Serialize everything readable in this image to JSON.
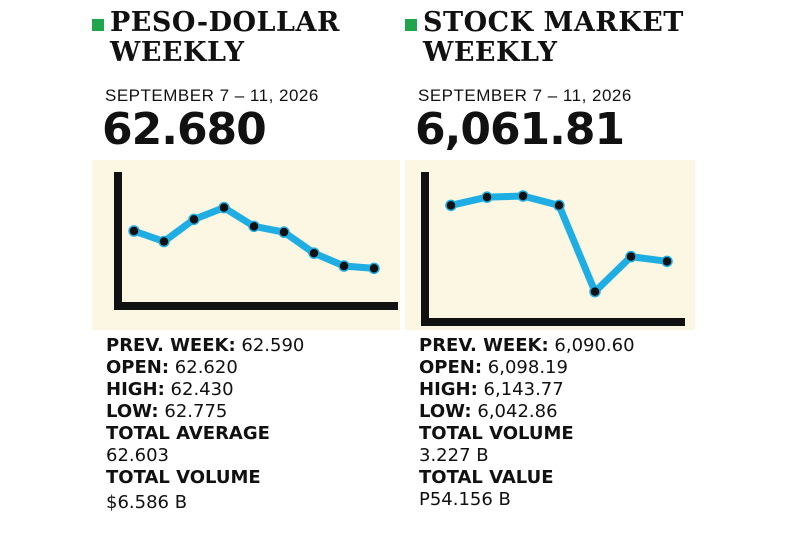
{
  "colors": {
    "bullet": "#1fa54b",
    "line": "#1eaee4",
    "marker": "#111111",
    "chart_bg": "#fbf7e2",
    "axis": "#111111"
  },
  "peso": {
    "title": "PESO-DOLLAR\nWEEKLY",
    "date": "SEPTEMBER 7 – 11, 2026",
    "value": "62.680",
    "stats": {
      "prev_label": "PREV. WEEK:",
      "prev_value": "62.590",
      "open_label": "OPEN:",
      "open_value": "62.620",
      "high_label": "HIGH:",
      "high_value": "62.430",
      "low_label": "LOW:",
      "low_value": "62.775",
      "avg_label": "TOTAL AVERAGE",
      "avg_value": "62.603",
      "vol_label": "TOTAL VOLUME",
      "vol_value": "$6.586 B"
    }
  },
  "stock": {
    "title": "STOCK MARKET\nWEEKLY",
    "date": "SEPTEMBER 7 – 11, 2026",
    "value": "6,061.81",
    "stats": {
      "prev_label": "PREV. WEEK:",
      "prev_value": "6,090.60",
      "open_label": "OPEN:",
      "open_value": "6,098.19",
      "high_label": "HIGH:",
      "high_value": "6,143.77",
      "low_label": "LOW:",
      "low_value": "6,042.86",
      "vol_label": "TOTAL VOLUME",
      "vol_value": "3.227 B",
      "tv_label": "TOTAL VALUE",
      "tv_value": "P54.156 B"
    }
  },
  "chart_data": [
    {
      "type": "line",
      "series": [
        {
          "values": [
            7.2,
            6.3,
            8.2,
            9.2,
            7.6,
            7.1,
            5.3,
            4.2,
            4.0
          ]
        }
      ],
      "ylim": [
        0,
        12
      ],
      "grid": false
    },
    {
      "type": "line",
      "series": [
        {
          "values": [
            9.4,
            10.1,
            10.2,
            9.4,
            2.0,
            5.0,
            4.6
          ]
        }
      ],
      "ylim": [
        0,
        12
      ],
      "grid": false
    }
  ]
}
